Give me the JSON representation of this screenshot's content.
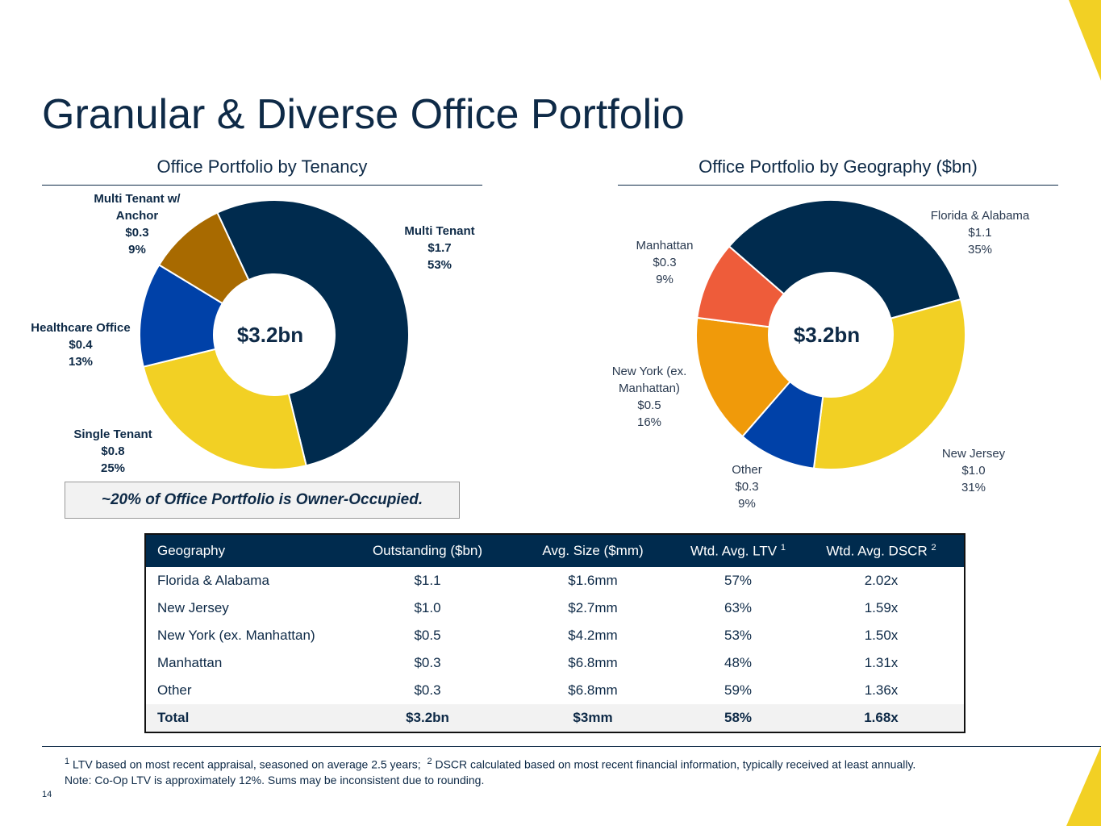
{
  "title": "Granular & Diverse Office Portfolio",
  "chart_data": [
    {
      "type": "donut",
      "title": "Office Portfolio by Tenancy",
      "center_label": "$3.2bn",
      "categories": [
        "Multi Tenant",
        "Single Tenant",
        "Healthcare Office",
        "Multi Tenant w/ Anchor"
      ],
      "values": [
        1.7,
        0.8,
        0.4,
        0.3
      ],
      "value_labels": [
        "$1.7",
        "$0.8",
        "$0.4",
        "$0.3"
      ],
      "shares": [
        53,
        25,
        13,
        9
      ],
      "share_labels": [
        "53%",
        "25%",
        "13%",
        "9%"
      ],
      "colors": [
        "#002b4e",
        "#f2d024",
        "#0041a8",
        "#a86a00"
      ]
    },
    {
      "type": "donut",
      "title": "Office Portfolio by Geography ($bn)",
      "center_label": "$3.2bn",
      "categories": [
        "Florida & Alabama",
        "New Jersey",
        "Other",
        "New York (ex. Manhattan)",
        "Manhattan"
      ],
      "values": [
        1.1,
        1.0,
        0.3,
        0.5,
        0.3
      ],
      "value_labels": [
        "$1.1",
        "$1.0",
        "$0.3",
        "$0.5",
        "$0.3"
      ],
      "shares": [
        35,
        31,
        9,
        16,
        9
      ],
      "share_labels": [
        "35%",
        "31%",
        "9%",
        "16%",
        "9%"
      ],
      "colors": [
        "#002b4e",
        "#f2d024",
        "#0041a8",
        "#f09a0a",
        "#ee5c3a"
      ]
    }
  ],
  "callout": "~20% of Office Portfolio is Owner-Occupied.",
  "table": {
    "columns": [
      {
        "label": "Geography"
      },
      {
        "label": "Outstanding ($bn)"
      },
      {
        "label": "Avg. Size ($mm)"
      },
      {
        "label": "Wtd. Avg. LTV",
        "note": "1"
      },
      {
        "label": "Wtd. Avg. DSCR",
        "note": "2"
      }
    ],
    "rows": [
      [
        "Florida & Alabama",
        "$1.1",
        "$1.6mm",
        "57%",
        "2.02x"
      ],
      [
        "New Jersey",
        "$1.0",
        "$2.7mm",
        "63%",
        "1.59x"
      ],
      [
        "New York (ex. Manhattan)",
        "$0.5",
        "$4.2mm",
        "53%",
        "1.50x"
      ],
      [
        "Manhattan",
        "$0.3",
        "$6.8mm",
        "48%",
        "1.31x"
      ],
      [
        "Other",
        "$0.3",
        "$6.8mm",
        "59%",
        "1.36x"
      ]
    ],
    "total": [
      "Total",
      "$3.2bn",
      "$3mm",
      "58%",
      "1.68x"
    ]
  },
  "footnotes": [
    {
      "mark": "1",
      "text": "LTV based on most recent appraisal, seasoned on average 2.5 years;"
    },
    {
      "mark": "2",
      "text": "DSCR calculated based on most recent financial information, typically received at least annually."
    }
  ],
  "note": "Note: Co-Op LTV is approximately 12%.  Sums may be inconsistent due to rounding.",
  "page_number": "14"
}
